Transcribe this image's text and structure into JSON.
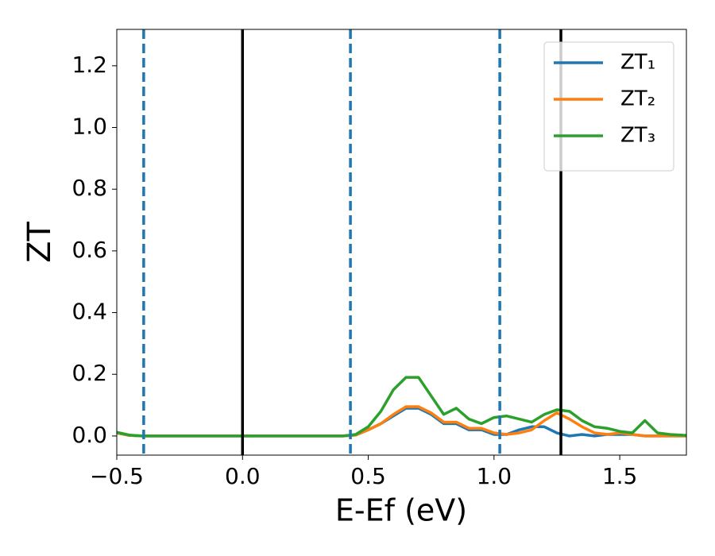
{
  "chart_data": {
    "type": "line",
    "xlabel": "E-Ef (eV)",
    "ylabel": "ZT",
    "x": [
      -0.5,
      -0.45,
      -0.4,
      0,
      0.4,
      0.45,
      0.5,
      0.55,
      0.6,
      0.65,
      0.7,
      0.75,
      0.8,
      0.85,
      0.9,
      0.95,
      1.0,
      1.05,
      1.1,
      1.15,
      1.2,
      1.25,
      1.3,
      1.35,
      1.4,
      1.45,
      1.5,
      1.55,
      1.6,
      1.65,
      1.7,
      1.765
    ],
    "series": [
      {
        "name": "ZT₁",
        "color": "#1f77b4",
        "values": [
          0.01,
          0.002,
          0,
          0,
          0,
          0.003,
          0.02,
          0.04,
          0.065,
          0.09,
          0.09,
          0.07,
          0.04,
          0.04,
          0.02,
          0.02,
          0.005,
          0.005,
          0.02,
          0.03,
          0.03,
          0.01,
          0,
          0.005,
          0,
          0.005,
          0.005,
          0.005,
          0,
          0,
          0,
          0
        ]
      },
      {
        "name": "ZT₂",
        "color": "#ff7f0e",
        "values": [
          0.01,
          0.002,
          0,
          0,
          0,
          0.003,
          0.02,
          0.04,
          0.07,
          0.095,
          0.095,
          0.075,
          0.045,
          0.045,
          0.025,
          0.025,
          0.01,
          0.005,
          0.01,
          0.02,
          0.05,
          0.075,
          0.055,
          0.03,
          0.01,
          0.005,
          0.01,
          0.005,
          0,
          0,
          0,
          0
        ]
      },
      {
        "name": "ZT₃",
        "color": "#2ca02c",
        "values": [
          0.012,
          0.003,
          0,
          0,
          0,
          0.005,
          0.03,
          0.08,
          0.15,
          0.19,
          0.19,
          0.13,
          0.07,
          0.09,
          0.055,
          0.04,
          0.06,
          0.065,
          0.055,
          0.045,
          0.07,
          0.085,
          0.08,
          0.05,
          0.03,
          0.025,
          0.015,
          0.01,
          0.05,
          0.01,
          0.005,
          0.002
        ]
      }
    ],
    "vlines": [
      {
        "x": -0.393,
        "color": "#1f77b4",
        "dashed": true
      },
      {
        "x": 0,
        "color": "#000000",
        "dashed": false
      },
      {
        "x": 0.429,
        "color": "#1f77b4",
        "dashed": true
      },
      {
        "x": 1.023,
        "color": "#1f77b4",
        "dashed": true
      },
      {
        "x": 1.266,
        "color": "#000000",
        "dashed": false
      }
    ],
    "xlim": [
      -0.5,
      1.765
    ],
    "ylim": [
      -0.062,
      1.318
    ],
    "xticks": [
      {
        "value": -0.5,
        "label": "−0.5"
      },
      {
        "value": 0,
        "label": "0.0"
      },
      {
        "value": 0.5,
        "label": "0.5"
      },
      {
        "value": 1,
        "label": "1.0"
      },
      {
        "value": 1.5,
        "label": "1.5"
      }
    ],
    "yticks": [
      {
        "value": 0,
        "label": "0.0"
      },
      {
        "value": 0.2,
        "label": "0.2"
      },
      {
        "value": 0.4,
        "label": "0.4"
      },
      {
        "value": 0.6,
        "label": "0.6"
      },
      {
        "value": 0.8,
        "label": "0.8"
      },
      {
        "value": 1.0,
        "label": "1.0"
      },
      {
        "value": 1.2,
        "label": "1.2"
      }
    ],
    "legend": "upper right",
    "grid": false
  }
}
